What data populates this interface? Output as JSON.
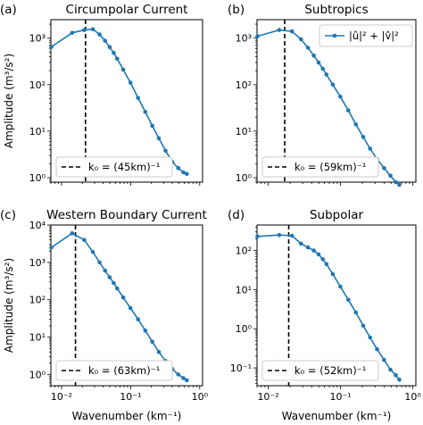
{
  "figure": {
    "ylabel": "Amplitude (m³/s²)",
    "xlabel": "Wavenumber (km⁻¹)"
  },
  "colors": {
    "series": "#1f77b4",
    "reference_line": "#000000"
  },
  "chart_data": [
    {
      "type": "line",
      "panel_label": "(a)",
      "title": "Circumpolar Current",
      "xscale": "log",
      "yscale": "log",
      "xlim": [
        0.007,
        1.1
      ],
      "ylim": [
        0.8,
        2500
      ],
      "yticks": [
        1,
        10,
        100,
        1000
      ],
      "ytick_labels": [
        "10⁰",
        "10¹",
        "10²",
        "10³"
      ],
      "legend_position": "lower left",
      "legend": {
        "line_label": "k₀ = (45km)⁻¹"
      },
      "vline_x": 0.0222,
      "series": [
        {
          "x": [
            0.0071,
            0.0142,
            0.0213,
            0.0284,
            0.0355,
            0.0426,
            0.0497,
            0.0568,
            0.0639,
            0.0781,
            0.0994,
            0.128,
            0.163,
            0.206,
            0.256,
            0.32,
            0.4,
            0.49,
            0.58,
            0.65
          ],
          "y": [
            650,
            1300,
            1500,
            1550,
            1200,
            880,
            640,
            480,
            360,
            210,
            110,
            52,
            26,
            13,
            7,
            3.8,
            2.2,
            1.6,
            1.3,
            1.2
          ]
        }
      ]
    },
    {
      "type": "line",
      "panel_label": "(b)",
      "title": "Subtropics",
      "xscale": "log",
      "yscale": "log",
      "xlim": [
        0.007,
        1.1
      ],
      "ylim": [
        0.8,
        2500
      ],
      "yticks": [
        1,
        10,
        100,
        1000
      ],
      "ytick_labels": [
        "10⁰",
        "10¹",
        "10²",
        "10³"
      ],
      "legend_position": "lower left",
      "legend": {
        "line_label": "k₀ = (59km)⁻¹"
      },
      "series_legend": {
        "label": "|û|² + |v̂|²",
        "position": "upper right"
      },
      "vline_x": 0.0169,
      "series": [
        {
          "x": [
            0.0071,
            0.0142,
            0.0213,
            0.0284,
            0.0355,
            0.0426,
            0.0497,
            0.0568,
            0.0639,
            0.0781,
            0.0994,
            0.128,
            0.163,
            0.206,
            0.256,
            0.32,
            0.4,
            0.49,
            0.58,
            0.65
          ],
          "y": [
            1100,
            1500,
            1400,
            950,
            620,
            420,
            300,
            220,
            165,
            100,
            55,
            28,
            14,
            7.5,
            4.2,
            2.5,
            1.6,
            1.1,
            0.8,
            0.7
          ]
        }
      ]
    },
    {
      "type": "line",
      "panel_label": "(c)",
      "title": "Western Boundary Current",
      "xscale": "log",
      "yscale": "log",
      "xlim": [
        0.007,
        1.1
      ],
      "ylim": [
        0.5,
        10000
      ],
      "yticks": [
        1,
        10,
        100,
        1000,
        10000
      ],
      "ytick_labels": [
        "10⁰",
        "10¹",
        "10²",
        "10³",
        "10⁴"
      ],
      "legend_position": "lower left",
      "legend": {
        "line_label": "k₀ = (63km)⁻¹"
      },
      "vline_x": 0.0159,
      "series": [
        {
          "x": [
            0.0071,
            0.0142,
            0.0213,
            0.0284,
            0.0355,
            0.0426,
            0.0497,
            0.0568,
            0.0639,
            0.0781,
            0.0994,
            0.128,
            0.163,
            0.206,
            0.256,
            0.32,
            0.4,
            0.49,
            0.58,
            0.65
          ],
          "y": [
            2500,
            6000,
            4000,
            1900,
            1000,
            600,
            400,
            280,
            200,
            115,
            60,
            30,
            15,
            7.5,
            4,
            2.3,
            1.4,
            1,
            0.8,
            0.7
          ]
        }
      ]
    },
    {
      "type": "line",
      "panel_label": "(d)",
      "title": "Subpolar",
      "xscale": "log",
      "yscale": "log",
      "xlim": [
        0.007,
        1.1
      ],
      "ylim": [
        0.035,
        450
      ],
      "yticks": [
        0.1,
        1,
        10,
        100
      ],
      "ytick_labels": [
        "10⁻¹",
        "10⁰",
        "10¹",
        "10²"
      ],
      "legend_position": "lower left",
      "legend": {
        "line_label": "k₀ = (52km)⁻¹"
      },
      "vline_x": 0.0192,
      "series": [
        {
          "x": [
            0.0071,
            0.0142,
            0.0213,
            0.0284,
            0.0355,
            0.0426,
            0.0497,
            0.0568,
            0.0639,
            0.0781,
            0.0994,
            0.128,
            0.163,
            0.206,
            0.256,
            0.32,
            0.4,
            0.49,
            0.58,
            0.65
          ],
          "y": [
            230,
            250,
            240,
            150,
            120,
            100,
            80,
            60,
            45,
            25,
            12,
            5.5,
            2.6,
            1.2,
            0.6,
            0.3,
            0.16,
            0.09,
            0.065,
            0.05
          ]
        }
      ]
    }
  ]
}
